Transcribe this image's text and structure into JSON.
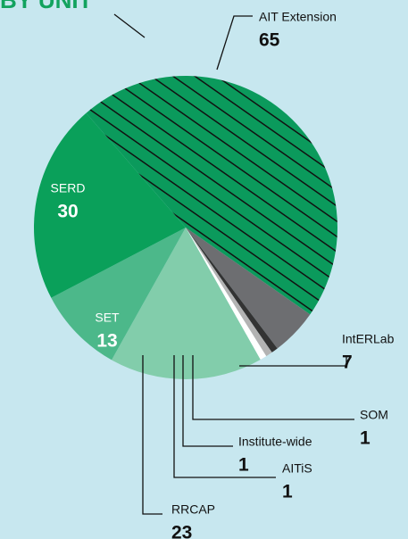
{
  "chart_data": {
    "type": "pie",
    "title": "BY UNIT",
    "categories": [
      "AIT Extension",
      "IntERLab",
      "SOM",
      "Institute-wide",
      "AITiS",
      "RRCAP",
      "SET",
      "SERD"
    ],
    "values": [
      65,
      7,
      1,
      1,
      1,
      23,
      13,
      30
    ],
    "colors": [
      "#0b9a5c",
      "#6d6e71",
      "#333333",
      "#b3b3b3",
      "#ffffff",
      "#82cdab",
      "#4cb88a",
      "#0aa05a"
    ],
    "hatch": [
      true,
      false,
      false,
      false,
      false,
      false,
      false,
      false
    ]
  }
}
